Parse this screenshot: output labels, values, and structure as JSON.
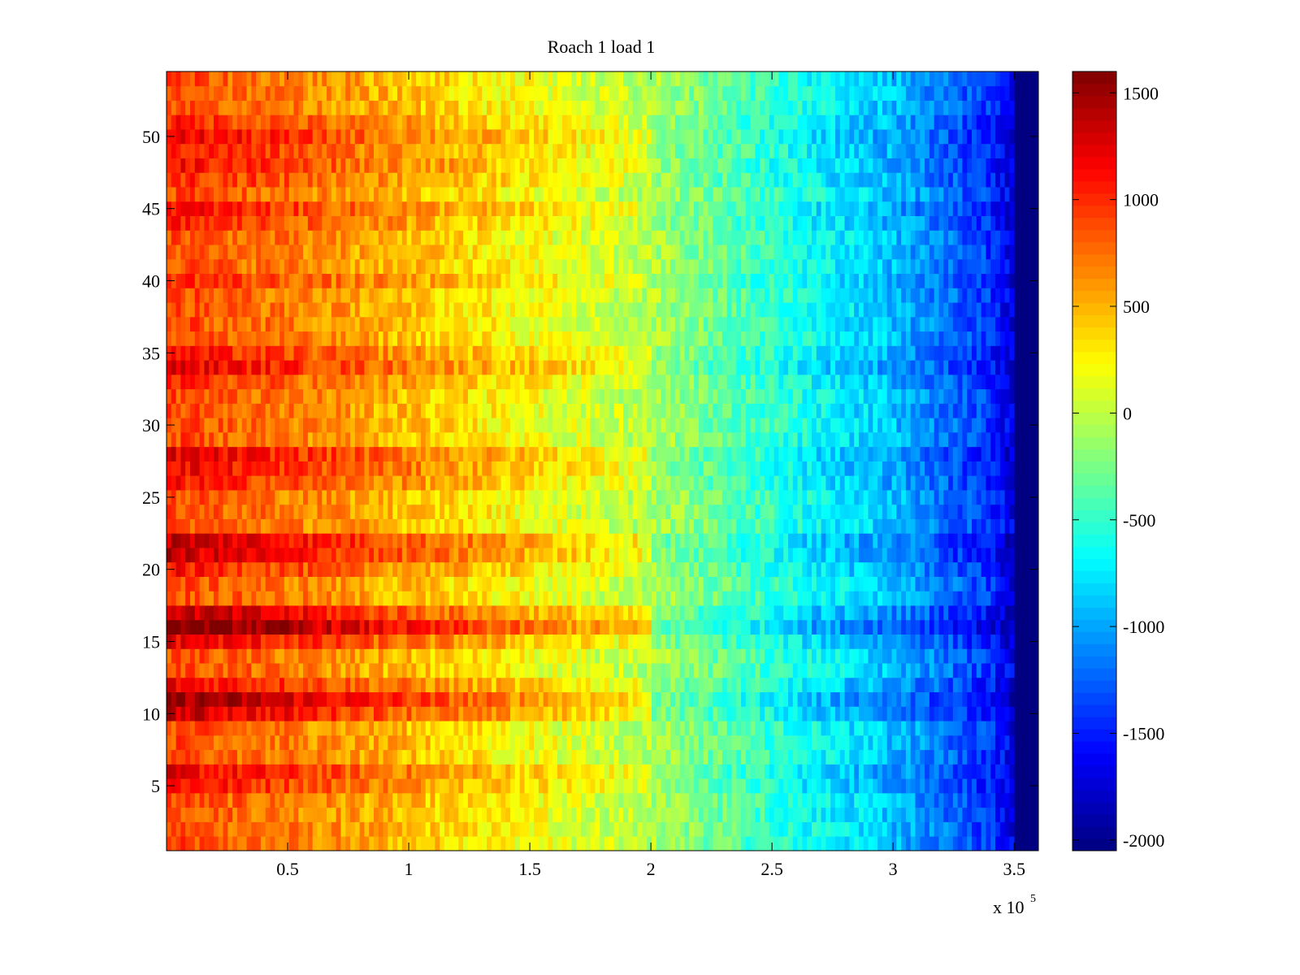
{
  "chart_data": {
    "type": "heatmap",
    "title": "Roach 1 load 1",
    "xlabel": "",
    "ylabel": "",
    "x_multiplier_label": "x 10",
    "x_multiplier_exponent": "5",
    "xlim": [
      0,
      3.6
    ],
    "ylim": [
      0.5,
      54.5
    ],
    "x_ticks": [
      0.5,
      1,
      1.5,
      2,
      2.5,
      3,
      3.5
    ],
    "x_tick_labels": [
      "0.5",
      "1",
      "1.5",
      "2",
      "2.5",
      "3",
      "3.5"
    ],
    "y_ticks": [
      5,
      10,
      15,
      20,
      25,
      30,
      35,
      40,
      45,
      50
    ],
    "y_tick_labels": [
      "5",
      "10",
      "15",
      "20",
      "25",
      "30",
      "35",
      "40",
      "45",
      "50"
    ],
    "rows": 54,
    "data_end_x": 3.5,
    "colormap": "jet",
    "colorbar": {
      "clim": [
        -2050,
        1600
      ],
      "ticks": [
        1500,
        1000,
        500,
        0,
        -500,
        -1000,
        -1500,
        -2000
      ],
      "tick_labels": [
        "1500",
        "1000",
        "500",
        "0",
        "-500",
        "-1000",
        "-1500",
        "-2000"
      ]
    },
    "trend": {
      "x": [
        0,
        0.5,
        1.0,
        1.5,
        2.0,
        2.5,
        3.0,
        3.4,
        3.5
      ],
      "value": [
        900,
        700,
        450,
        200,
        -50,
        -500,
        -900,
        -1400,
        -1700
      ]
    },
    "row_offsets": {
      "5": 250,
      "6": 300,
      "10": 450,
      "11": 650,
      "12": 300,
      "15": 350,
      "16": 800,
      "17": 500,
      "20": 200,
      "21": 450,
      "22": 500,
      "26": 200,
      "27": 300,
      "28": 350,
      "33": 100,
      "34": 350,
      "35": 200,
      "40": 150,
      "44": 150,
      "45": 250,
      "47": 150,
      "48": 250,
      "49": 200,
      "50": 300,
      "51": 150
    },
    "background_value": -2050
  }
}
